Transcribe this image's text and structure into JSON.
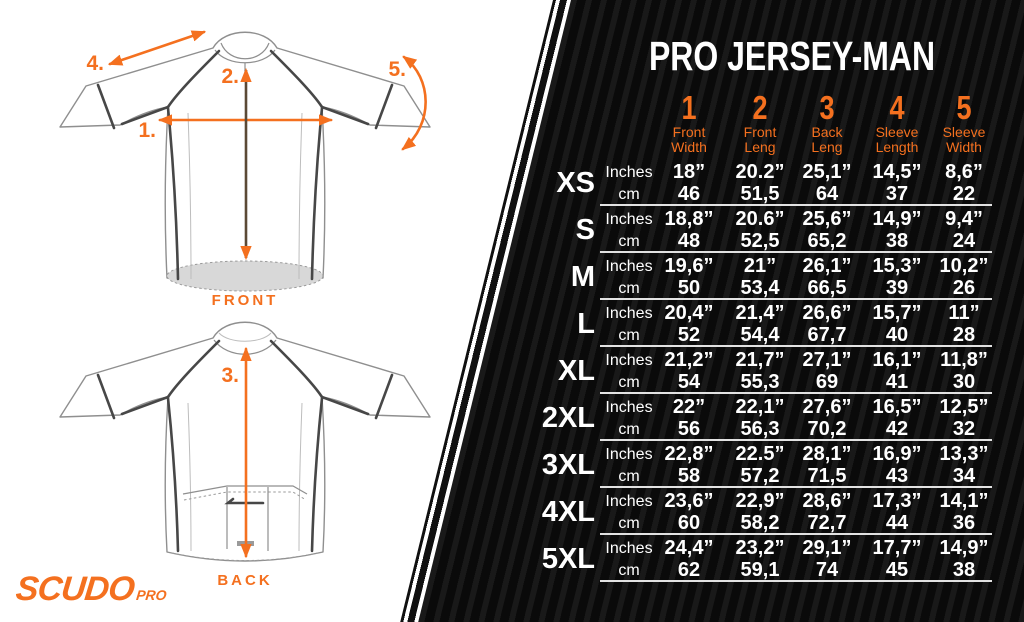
{
  "brand": {
    "logo_main": "SCUDO",
    "logo_sub": "PRO"
  },
  "diagram": {
    "front_label": "FRONT",
    "back_label": "BACK",
    "marker_1": "1.",
    "marker_2": "2.",
    "marker_3": "3.",
    "marker_4": "4.",
    "marker_5": "5."
  },
  "chart_data": {
    "type": "table",
    "title": "PRO JERSEY-MAN",
    "unit_labels": {
      "inches": "Inches",
      "cm": "cm"
    },
    "columns": [
      {
        "num": "1",
        "label_lines": [
          "Front",
          "Width"
        ]
      },
      {
        "num": "2",
        "label_lines": [
          "Front",
          "Leng"
        ]
      },
      {
        "num": "3",
        "label_lines": [
          "Back",
          "Leng"
        ]
      },
      {
        "num": "4",
        "label_lines": [
          "Sleeve",
          "Length"
        ]
      },
      {
        "num": "5",
        "label_lines": [
          "Sleeve",
          "Width"
        ]
      }
    ],
    "rows": [
      {
        "size": "XS",
        "inches": [
          "18”",
          "20.2”",
          "25,1”",
          "14,5”",
          "8,6”"
        ],
        "cm": [
          "46",
          "51,5",
          "64",
          "37",
          "22"
        ]
      },
      {
        "size": "S",
        "inches": [
          "18,8”",
          "20.6”",
          "25,6”",
          "14,9”",
          "9,4”"
        ],
        "cm": [
          "48",
          "52,5",
          "65,2",
          "38",
          "24"
        ]
      },
      {
        "size": "M",
        "inches": [
          "19,6”",
          "21”",
          "26,1”",
          "15,3”",
          "10,2”"
        ],
        "cm": [
          "50",
          "53,4",
          "66,5",
          "39",
          "26"
        ]
      },
      {
        "size": "L",
        "inches": [
          "20,4”",
          "21,4”",
          "26,6”",
          "15,7”",
          "11”"
        ],
        "cm": [
          "52",
          "54,4",
          "67,7",
          "40",
          "28"
        ]
      },
      {
        "size": "XL",
        "inches": [
          "21,2”",
          "21,7”",
          "27,1”",
          "16,1”",
          "11,8”"
        ],
        "cm": [
          "54",
          "55,3",
          "69",
          "41",
          "30"
        ]
      },
      {
        "size": "2XL",
        "inches": [
          "22”",
          "22,1”",
          "27,6”",
          "16,5”",
          "12,5”"
        ],
        "cm": [
          "56",
          "56,3",
          "70,2",
          "42",
          "32"
        ]
      },
      {
        "size": "3XL",
        "inches": [
          "22,8”",
          "22.5”",
          "28,1”",
          "16,9”",
          "13,3”"
        ],
        "cm": [
          "58",
          "57,2",
          "71,5",
          "43",
          "34"
        ]
      },
      {
        "size": "4XL",
        "inches": [
          "23,6”",
          "22,9”",
          "28,6”",
          "17,3”",
          "14,1”"
        ],
        "cm": [
          "60",
          "58,2",
          "72,7",
          "44",
          "36"
        ]
      },
      {
        "size": "5XL",
        "inches": [
          "24,4”",
          "23,2”",
          "29,1”",
          "17,7”",
          "14,9”"
        ],
        "cm": [
          "62",
          "59,1",
          "74",
          "45",
          "38"
        ]
      }
    ]
  },
  "colors": {
    "accent": "#f4701f",
    "panel_black": "#0a0a0a",
    "pinstripe": "#191919",
    "measure_line_brown": "#5b4936",
    "separator": "#e2e2e2",
    "hem_fill": "#d8d8d8"
  }
}
